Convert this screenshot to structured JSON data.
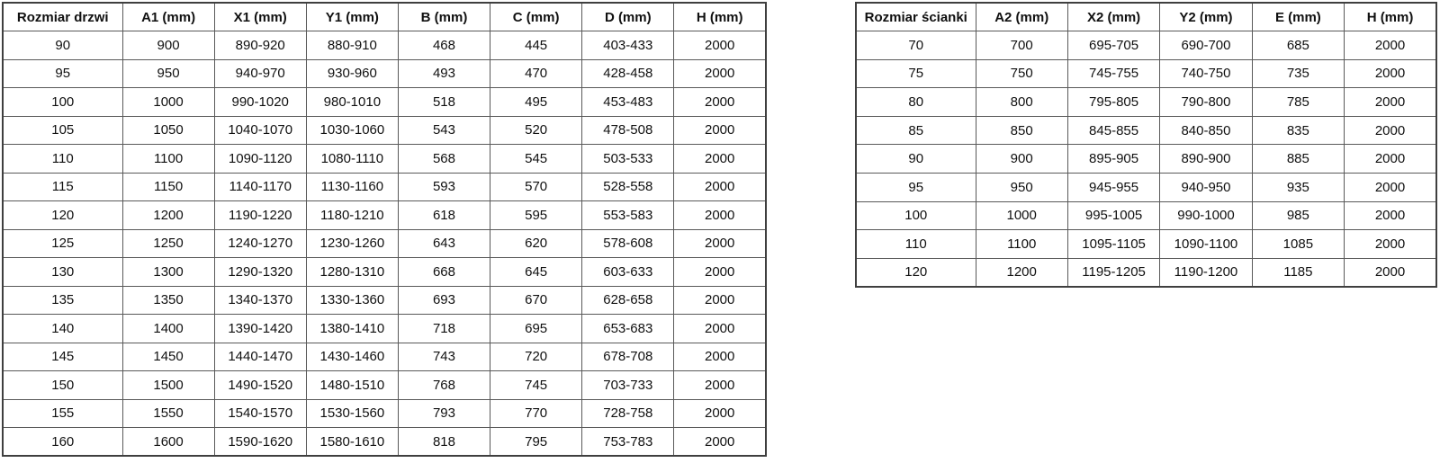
{
  "tables": [
    {
      "id": "door-size-table",
      "headers": [
        "Rozmiar drzwi",
        "A1 (mm)",
        "X1 (mm)",
        "Y1 (mm)",
        "B (mm)",
        "C (mm)",
        "D (mm)",
        "H (mm)"
      ],
      "rows": [
        [
          "90",
          "900",
          "890-920",
          "880-910",
          "468",
          "445",
          "403-433",
          "2000"
        ],
        [
          "95",
          "950",
          "940-970",
          "930-960",
          "493",
          "470",
          "428-458",
          "2000"
        ],
        [
          "100",
          "1000",
          "990-1020",
          "980-1010",
          "518",
          "495",
          "453-483",
          "2000"
        ],
        [
          "105",
          "1050",
          "1040-1070",
          "1030-1060",
          "543",
          "520",
          "478-508",
          "2000"
        ],
        [
          "110",
          "1100",
          "1090-1120",
          "1080-1110",
          "568",
          "545",
          "503-533",
          "2000"
        ],
        [
          "115",
          "1150",
          "1140-1170",
          "1130-1160",
          "593",
          "570",
          "528-558",
          "2000"
        ],
        [
          "120",
          "1200",
          "1190-1220",
          "1180-1210",
          "618",
          "595",
          "553-583",
          "2000"
        ],
        [
          "125",
          "1250",
          "1240-1270",
          "1230-1260",
          "643",
          "620",
          "578-608",
          "2000"
        ],
        [
          "130",
          "1300",
          "1290-1320",
          "1280-1310",
          "668",
          "645",
          "603-633",
          "2000"
        ],
        [
          "135",
          "1350",
          "1340-1370",
          "1330-1360",
          "693",
          "670",
          "628-658",
          "2000"
        ],
        [
          "140",
          "1400",
          "1390-1420",
          "1380-1410",
          "718",
          "695",
          "653-683",
          "2000"
        ],
        [
          "145",
          "1450",
          "1440-1470",
          "1430-1460",
          "743",
          "720",
          "678-708",
          "2000"
        ],
        [
          "150",
          "1500",
          "1490-1520",
          "1480-1510",
          "768",
          "745",
          "703-733",
          "2000"
        ],
        [
          "155",
          "1550",
          "1540-1570",
          "1530-1560",
          "793",
          "770",
          "728-758",
          "2000"
        ],
        [
          "160",
          "1600",
          "1590-1620",
          "1580-1610",
          "818",
          "795",
          "753-783",
          "2000"
        ]
      ]
    },
    {
      "id": "wall-size-table",
      "headers": [
        "Rozmiar ścianki",
        "A2 (mm)",
        "X2 (mm)",
        "Y2 (mm)",
        "E (mm)",
        "H (mm)"
      ],
      "rows": [
        [
          "70",
          "700",
          "695-705",
          "690-700",
          "685",
          "2000"
        ],
        [
          "75",
          "750",
          "745-755",
          "740-750",
          "735",
          "2000"
        ],
        [
          "80",
          "800",
          "795-805",
          "790-800",
          "785",
          "2000"
        ],
        [
          "85",
          "850",
          "845-855",
          "840-850",
          "835",
          "2000"
        ],
        [
          "90",
          "900",
          "895-905",
          "890-900",
          "885",
          "2000"
        ],
        [
          "95",
          "950",
          "945-955",
          "940-950",
          "935",
          "2000"
        ],
        [
          "100",
          "1000",
          "995-1005",
          "990-1000",
          "985",
          "2000"
        ],
        [
          "110",
          "1100",
          "1095-1105",
          "1090-1100",
          "1085",
          "2000"
        ],
        [
          "120",
          "1200",
          "1195-1205",
          "1190-1200",
          "1185",
          "2000"
        ]
      ]
    }
  ],
  "colors": {
    "background": "#ffffff",
    "outer_border": "#3f3f3f",
    "inner_border": "#595959",
    "text": "#101010"
  }
}
